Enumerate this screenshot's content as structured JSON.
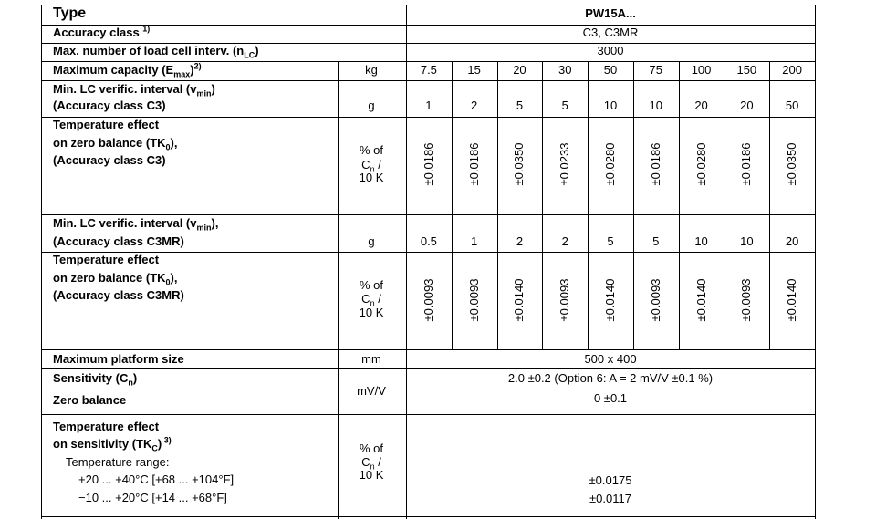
{
  "rows": [
    {
      "label": [
        [
          "Type"
        ]
      ],
      "value": "PW15A..."
    },
    {
      "label": [
        [
          "Accuracy class ",
          {
            "sup": "1)"
          }
        ]
      ],
      "value": "C3, C3MR"
    },
    {
      "label": [
        [
          "Max. number of load cell interv. (n",
          {
            "sub": "LC"
          },
          ")"
        ]
      ],
      "value": 3000
    },
    {
      "label": [
        [
          "Maximum capacity (E",
          {
            "sub": "max"
          },
          ")",
          {
            "sup": "2)"
          }
        ]
      ],
      "unit": [
        [
          "kg"
        ]
      ],
      "values": [
        7.5,
        15,
        20,
        30,
        50,
        75,
        100,
        150,
        200
      ]
    },
    {
      "label": [
        [
          "Min. LC verific. interval (v",
          {
            "sub": "min"
          },
          ")"
        ],
        [
          "(Accuracy class C3)"
        ]
      ],
      "unit": [
        [
          "g"
        ]
      ],
      "values": [
        1,
        2,
        5,
        5,
        10,
        10,
        20,
        20,
        50
      ]
    },
    {
      "label": [
        [
          "Temperature effect"
        ],
        [
          "on zero balance (TK",
          {
            "sub": "0"
          },
          "),"
        ],
        [
          "(Accuracy class C3)"
        ]
      ],
      "unit": [
        [
          "% of"
        ],
        [
          "C",
          {
            "sub": "n"
          },
          " /"
        ],
        [
          "10 K"
        ]
      ],
      "values": [
        "±0.0186",
        "±0.0186",
        "±0.0350",
        "±0.0233",
        "±0.0280",
        "±0.0186",
        "±0.0280",
        "±0.0186",
        "±0.0350"
      ]
    },
    {
      "label": [
        [
          "Min. LC verific. interval (v",
          {
            "sub": "min"
          },
          "),"
        ],
        [
          "(Accuracy class C3MR)"
        ]
      ],
      "unit": [
        [
          "g"
        ]
      ],
      "values": [
        0.5,
        1,
        2,
        2,
        5,
        5,
        10,
        10,
        20
      ]
    },
    {
      "label": [
        [
          "Temperature effect"
        ],
        [
          "on zero balance (TK",
          {
            "sub": "0"
          },
          "),"
        ],
        [
          "(Accuracy class C3MR)"
        ]
      ],
      "unit": [
        [
          "% of"
        ],
        [
          "C",
          {
            "sub": "n"
          },
          " /"
        ],
        [
          "10 K"
        ]
      ],
      "values": [
        "±0.0093",
        "±0.0093",
        "±0.0140",
        "±0.0093",
        "±0.0140",
        "±0.0093",
        "±0.0140",
        "±0.0093",
        "±0.0140"
      ]
    },
    {
      "label": [
        [
          "Maximum platform size"
        ]
      ],
      "unit": [
        [
          "mm"
        ]
      ],
      "value": "500 x 400"
    },
    {
      "label": [
        [
          "Sensitivity (C",
          {
            "sub": "n"
          },
          ")"
        ]
      ],
      "unit": [
        [
          "mV/V"
        ]
      ],
      "value": "2.0 ±0.2 (Option 6: A = 2 mV/V ±0.1 %)"
    },
    {
      "label": [
        [
          "Zero balance"
        ]
      ],
      "value": "0 ±0.1"
    },
    {
      "label": [
        [
          "Temperature  effect"
        ],
        [
          "on sensitivity (TK",
          {
            "sub": "C"
          },
          ")",
          {
            "sup": " 3)"
          }
        ],
        [
          "Temperature range:"
        ],
        [
          "+20 ... +40°C [+68 ... +104°F]"
        ],
        [
          "−10 ... +20°C [+14 ... +68°F]"
        ]
      ],
      "unit": [
        [
          "% of"
        ],
        [
          "C",
          {
            "sub": "n"
          },
          " /"
        ],
        [
          "10 K"
        ]
      ],
      "value_lines": [
        "±0.0175",
        "±0.0117"
      ]
    }
  ]
}
